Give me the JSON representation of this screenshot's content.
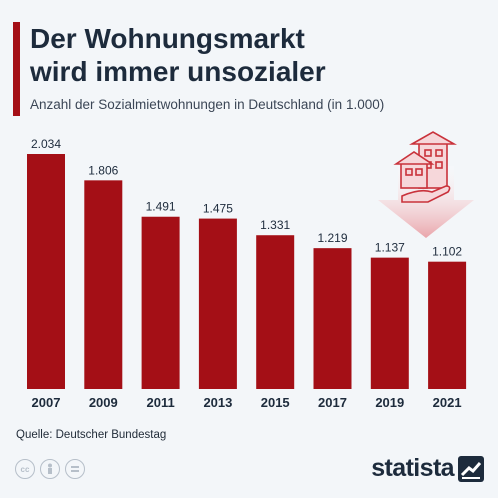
{
  "header": {
    "title": "Der Wohnungsmarkt\nwird immer unsozialer",
    "subtitle": "Anzahl der Sozialmietwohnungen in Deutschland (in 1.000)"
  },
  "footer": {
    "source": "Quelle: Deutscher Bundestag",
    "brand": "statista",
    "licence_icons": [
      "cc-icon",
      "person-icon",
      "equals-icon"
    ]
  },
  "colors": {
    "bar": "#a40f16",
    "text": "#1d2b3c",
    "background": "#f3f6f9"
  },
  "chart_data": {
    "type": "bar",
    "title": "Der Wohnungsmarkt wird immer unsozialer",
    "subtitle": "Anzahl der Sozialmietwohnungen in Deutschland (in 1.000)",
    "categories": [
      "2007",
      "2009",
      "2011",
      "2013",
      "2015",
      "2017",
      "2019",
      "2021"
    ],
    "values": [
      2034,
      1806,
      1491,
      1475,
      1331,
      1219,
      1137,
      1102
    ],
    "value_labels": [
      "2.034",
      "1.806",
      "1.491",
      "1.475",
      "1.331",
      "1.219",
      "1.137",
      "1.102"
    ],
    "ylim": [
      0,
      2034
    ],
    "grid": false,
    "legend": "none"
  }
}
